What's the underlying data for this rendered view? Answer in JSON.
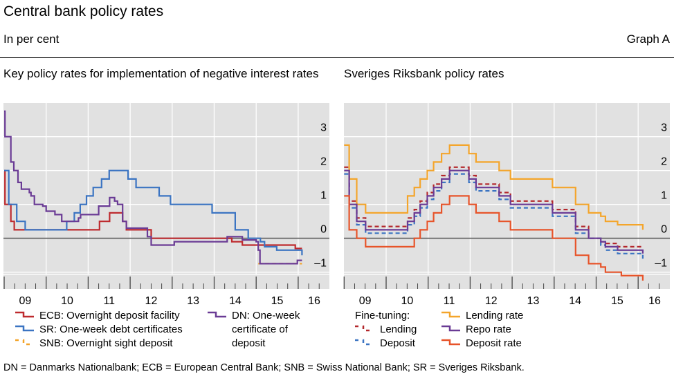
{
  "header": {
    "title": "Central bank policy rates",
    "unit": "In per cent",
    "graph_id": "Graph A"
  },
  "footnote": "DN = Danmarks Nationalbank; ECB = European Central Bank; SNB = Swiss National Bank; SR = Sveriges Riksbank.",
  "chart_data": [
    {
      "type": "line",
      "step": true,
      "title": "Key policy rates for implementation of negative interest rates",
      "x_tick_labels": [
        "09",
        "10",
        "11",
        "12",
        "13",
        "14",
        "15",
        "16"
      ],
      "y_ticks": [
        -1,
        0,
        1,
        2,
        3
      ],
      "y_tick_labels": [
        "–1",
        "0",
        "1",
        "2",
        "3"
      ],
      "xlim": [
        2009.0,
        2016.75
      ],
      "ylim": [
        -1.5,
        4.0
      ],
      "grid": true,
      "y_axis_side": "right",
      "legend": "bottom",
      "series": [
        {
          "name": "ECB: Overnight deposit facility",
          "color": "#be2a2e",
          "dashed": false,
          "points": [
            [
              2009.0,
              2.0
            ],
            [
              2009.02,
              1.0
            ],
            [
              2009.16,
              0.5
            ],
            [
              2009.24,
              0.25
            ],
            [
              2011.27,
              0.5
            ],
            [
              2011.51,
              0.75
            ],
            [
              2011.82,
              0.5
            ],
            [
              2011.91,
              0.25
            ],
            [
              2012.5,
              0.0
            ],
            [
              2014.42,
              -0.1
            ],
            [
              2014.67,
              -0.2
            ],
            [
              2015.93,
              -0.3
            ],
            [
              2016.09,
              -0.3
            ]
          ]
        },
        {
          "name": "SR: One-week debt certificates",
          "color": "#3b74c2",
          "dashed": false,
          "points": [
            [
              2009.0,
              2.0
            ],
            [
              2009.11,
              1.0
            ],
            [
              2009.3,
              0.5
            ],
            [
              2009.5,
              0.25
            ],
            [
              2010.49,
              0.5
            ],
            [
              2010.67,
              0.75
            ],
            [
              2010.81,
              1.0
            ],
            [
              2010.96,
              1.25
            ],
            [
              2011.12,
              1.5
            ],
            [
              2011.32,
              1.75
            ],
            [
              2011.5,
              2.0
            ],
            [
              2011.95,
              1.75
            ],
            [
              2012.14,
              1.5
            ],
            [
              2012.69,
              1.25
            ],
            [
              2012.96,
              1.0
            ],
            [
              2013.95,
              0.75
            ],
            [
              2014.5,
              0.25
            ],
            [
              2014.81,
              0.0
            ],
            [
              2015.1,
              -0.1
            ],
            [
              2015.2,
              -0.25
            ],
            [
              2015.49,
              -0.35
            ],
            [
              2016.09,
              -0.5
            ]
          ]
        },
        {
          "name": "SNB: Overnight sight deposit",
          "color": "#f3a42a",
          "dashed": true,
          "points": [
            [
              2015.05,
              -0.75
            ],
            [
              2016.09,
              -0.75
            ]
          ]
        },
        {
          "name": "DN: One-week certificate of deposit",
          "color": "#6a3b95",
          "dashed": false,
          "points": [
            [
              2009.0,
              3.75
            ],
            [
              2009.02,
              3.0
            ],
            [
              2009.16,
              2.25
            ],
            [
              2009.23,
              2.0
            ],
            [
              2009.33,
              1.65
            ],
            [
              2009.41,
              1.45
            ],
            [
              2009.6,
              1.35
            ],
            [
              2009.64,
              1.25
            ],
            [
              2009.72,
              1.0
            ],
            [
              2009.92,
              0.95
            ],
            [
              2010.0,
              0.8
            ],
            [
              2010.21,
              0.7
            ],
            [
              2010.37,
              0.5
            ],
            [
              2010.77,
              0.6
            ],
            [
              2010.82,
              0.7
            ],
            [
              2011.25,
              0.95
            ],
            [
              2011.51,
              1.2
            ],
            [
              2011.63,
              1.1
            ],
            [
              2011.7,
              1.0
            ],
            [
              2011.82,
              0.5
            ],
            [
              2011.91,
              0.3
            ],
            [
              2012.41,
              0.05
            ],
            [
              2012.5,
              -0.2
            ],
            [
              2013.05,
              -0.1
            ],
            [
              2014.31,
              0.05
            ],
            [
              2014.67,
              -0.05
            ],
            [
              2015.0,
              -0.1
            ],
            [
              2015.05,
              -0.35
            ],
            [
              2015.09,
              -0.75
            ],
            [
              2015.98,
              -0.65
            ],
            [
              2016.09,
              -0.65
            ]
          ]
        }
      ]
    },
    {
      "type": "line",
      "step": true,
      "title": "Sveriges Riksbank policy rates",
      "x_tick_labels": [
        "09",
        "10",
        "11",
        "12",
        "13",
        "14",
        "15",
        "16"
      ],
      "y_ticks": [
        -1,
        0,
        1,
        2,
        3
      ],
      "y_tick_labels": [
        "–1",
        "0",
        "1",
        "2",
        "3"
      ],
      "xlim": [
        2009.0,
        2016.75
      ],
      "ylim": [
        -1.5,
        4.0
      ],
      "grid": true,
      "y_axis_side": "right",
      "legend": "bottom",
      "legend_group_label": "Fine-tuning:",
      "series": [
        {
          "name": "Lending",
          "group": "Fine-tuning:",
          "color": "#b3282c",
          "dashed": true,
          "points": [
            [
              2009.0,
              2.1
            ],
            [
              2009.12,
              1.1
            ],
            [
              2009.3,
              0.6
            ],
            [
              2009.51,
              0.35
            ],
            [
              2010.51,
              0.6
            ],
            [
              2010.67,
              0.85
            ],
            [
              2010.81,
              1.1
            ],
            [
              2010.98,
              1.35
            ],
            [
              2011.13,
              1.6
            ],
            [
              2011.32,
              1.85
            ],
            [
              2011.51,
              2.1
            ],
            [
              2011.97,
              1.85
            ],
            [
              2012.14,
              1.6
            ],
            [
              2012.69,
              1.35
            ],
            [
              2012.96,
              1.1
            ],
            [
              2013.96,
              0.85
            ],
            [
              2014.51,
              0.35
            ],
            [
              2014.82,
              0.0
            ],
            [
              2015.11,
              -0.1
            ],
            [
              2015.22,
              -0.15
            ],
            [
              2015.51,
              -0.25
            ],
            [
              2016.11,
              -0.25
            ]
          ]
        },
        {
          "name": "Deposit",
          "group": "Fine-tuning:",
          "color": "#3b74c2",
          "dashed": true,
          "points": [
            [
              2009.0,
              1.9
            ],
            [
              2009.12,
              0.9
            ],
            [
              2009.3,
              0.4
            ],
            [
              2009.51,
              0.15
            ],
            [
              2010.51,
              0.4
            ],
            [
              2010.67,
              0.65
            ],
            [
              2010.81,
              0.9
            ],
            [
              2010.98,
              1.15
            ],
            [
              2011.13,
              1.4
            ],
            [
              2011.32,
              1.65
            ],
            [
              2011.51,
              1.9
            ],
            [
              2011.97,
              1.65
            ],
            [
              2012.14,
              1.4
            ],
            [
              2012.69,
              1.15
            ],
            [
              2012.96,
              0.9
            ],
            [
              2013.96,
              0.65
            ],
            [
              2014.51,
              0.15
            ],
            [
              2014.82,
              0.0
            ],
            [
              2015.11,
              -0.2
            ],
            [
              2015.22,
              -0.35
            ],
            [
              2015.51,
              -0.45
            ],
            [
              2016.11,
              -0.6
            ]
          ]
        },
        {
          "name": "Lending rate",
          "color": "#f4a52b",
          "dashed": false,
          "points": [
            [
              2009.0,
              2.75
            ],
            [
              2009.12,
              1.75
            ],
            [
              2009.3,
              1.0
            ],
            [
              2009.51,
              0.75
            ],
            [
              2010.51,
              1.25
            ],
            [
              2010.67,
              1.5
            ],
            [
              2010.81,
              1.75
            ],
            [
              2010.98,
              2.0
            ],
            [
              2011.13,
              2.25
            ],
            [
              2011.32,
              2.5
            ],
            [
              2011.51,
              2.75
            ],
            [
              2011.97,
              2.5
            ],
            [
              2012.14,
              2.25
            ],
            [
              2012.69,
              2.0
            ],
            [
              2012.96,
              1.75
            ],
            [
              2013.96,
              1.5
            ],
            [
              2014.51,
              1.0
            ],
            [
              2014.82,
              0.75
            ],
            [
              2015.11,
              0.65
            ],
            [
              2015.22,
              0.5
            ],
            [
              2015.51,
              0.4
            ],
            [
              2016.11,
              0.25
            ]
          ]
        },
        {
          "name": "Repo rate",
          "color": "#6a3b95",
          "dashed": false,
          "points": [
            [
              2009.0,
              2.0
            ],
            [
              2009.12,
              1.0
            ],
            [
              2009.3,
              0.5
            ],
            [
              2009.51,
              0.25
            ],
            [
              2010.51,
              0.5
            ],
            [
              2010.67,
              0.75
            ],
            [
              2010.81,
              1.0
            ],
            [
              2010.98,
              1.25
            ],
            [
              2011.13,
              1.5
            ],
            [
              2011.32,
              1.75
            ],
            [
              2011.51,
              2.0
            ],
            [
              2011.97,
              1.75
            ],
            [
              2012.14,
              1.5
            ],
            [
              2012.69,
              1.25
            ],
            [
              2012.96,
              1.0
            ],
            [
              2013.96,
              0.75
            ],
            [
              2014.51,
              0.25
            ],
            [
              2014.82,
              0.0
            ],
            [
              2015.11,
              -0.1
            ],
            [
              2015.22,
              -0.25
            ],
            [
              2015.51,
              -0.35
            ],
            [
              2016.11,
              -0.45
            ]
          ]
        },
        {
          "name": "Deposit rate",
          "color": "#e7542a",
          "dashed": false,
          "points": [
            [
              2009.0,
              1.25
            ],
            [
              2009.12,
              0.25
            ],
            [
              2009.3,
              0.0
            ],
            [
              2009.51,
              -0.25
            ],
            [
              2010.67,
              0.0
            ],
            [
              2010.81,
              0.25
            ],
            [
              2010.98,
              0.5
            ],
            [
              2011.13,
              0.75
            ],
            [
              2011.32,
              1.0
            ],
            [
              2011.51,
              1.25
            ],
            [
              2011.97,
              1.0
            ],
            [
              2012.14,
              0.75
            ],
            [
              2012.69,
              0.5
            ],
            [
              2012.96,
              0.25
            ],
            [
              2013.96,
              0.0
            ],
            [
              2014.51,
              -0.5
            ],
            [
              2014.82,
              -0.75
            ],
            [
              2015.11,
              -0.85
            ],
            [
              2015.22,
              -1.0
            ],
            [
              2015.6,
              -1.1
            ],
            [
              2016.11,
              -1.25
            ]
          ]
        }
      ]
    }
  ]
}
